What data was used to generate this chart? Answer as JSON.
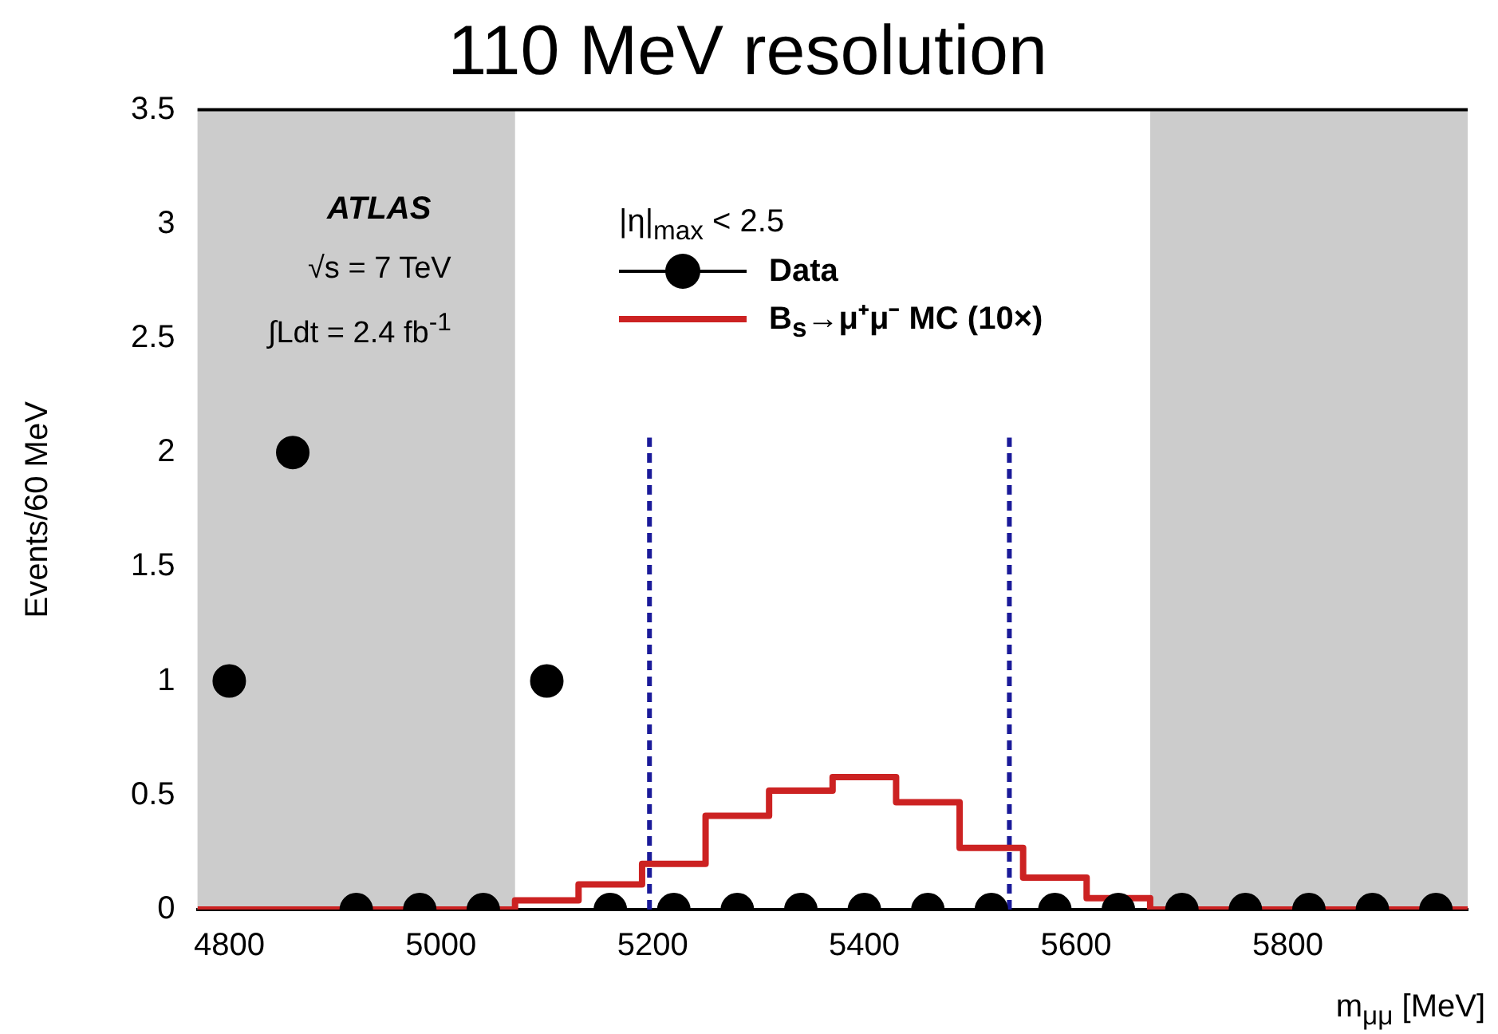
{
  "chart_data": {
    "type": "scatter",
    "title": "110 MeV resolution",
    "xlabel": "m$_{μμ}$ [MeV]",
    "ylabel": "Events/60 MeV",
    "legend_title": "|η|$_{max}$ < 2.5",
    "annotations": [
      "ATLAS",
      "√s = 7 TeV",
      "∫Ldt = 2.4 fb$^{-1}$"
    ],
    "series": [
      {
        "name": "Data",
        "color": "#000000",
        "x": [
          4800,
          4860,
          4920,
          4980,
          5040,
          5100,
          5160,
          5220,
          5280,
          5340,
          5400,
          5460,
          5520,
          5580,
          5640,
          5700,
          5760,
          5820,
          5880,
          5940
        ],
        "values": [
          1,
          2,
          0,
          0,
          0,
          1,
          0,
          0,
          0,
          0,
          0,
          0,
          0,
          0,
          0,
          0,
          0,
          0,
          0,
          0
        ]
      },
      {
        "name": "B$_{s}$→μ⁺μ⁻ MC (10×)",
        "type": "histogram",
        "color": "#cc2222",
        "bins": [
          4770,
          4830,
          4890,
          4950,
          5010,
          5070,
          5130,
          5190,
          5250,
          5310,
          5370,
          5430,
          5490,
          5550,
          5610,
          5670,
          5730,
          5790,
          5850,
          5910,
          5970
        ],
        "values": [
          0,
          0,
          0,
          0,
          0,
          0.04,
          0.11,
          0.2,
          0.41,
          0.52,
          0.58,
          0.47,
          0.27,
          0.14,
          0.05,
          0,
          0,
          0,
          0,
          0
        ]
      }
    ],
    "bands": [
      {
        "axis": "x",
        "from": 4770,
        "to": 5070,
        "color": "#cccccc"
      },
      {
        "axis": "x",
        "from": 5670,
        "to": 5970,
        "color": "#cccccc"
      }
    ],
    "ref_lines": [
      {
        "axis": "x",
        "value": 5197,
        "color": "#1a1a99",
        "line_style": "dashed"
      },
      {
        "axis": "x",
        "value": 5537,
        "color": "#1a1a99",
        "line_style": "dashed"
      }
    ],
    "xlim": [
      4770,
      5970
    ],
    "xticks": [
      4800,
      5000,
      5200,
      5400,
      5600,
      5800
    ],
    "ylim": [
      0,
      3.5
    ],
    "yticks": [
      0,
      0.5,
      1,
      1.5,
      2,
      2.5,
      3,
      3.5
    ],
    "grid": false,
    "legend": "top",
    "marker": "circle"
  }
}
